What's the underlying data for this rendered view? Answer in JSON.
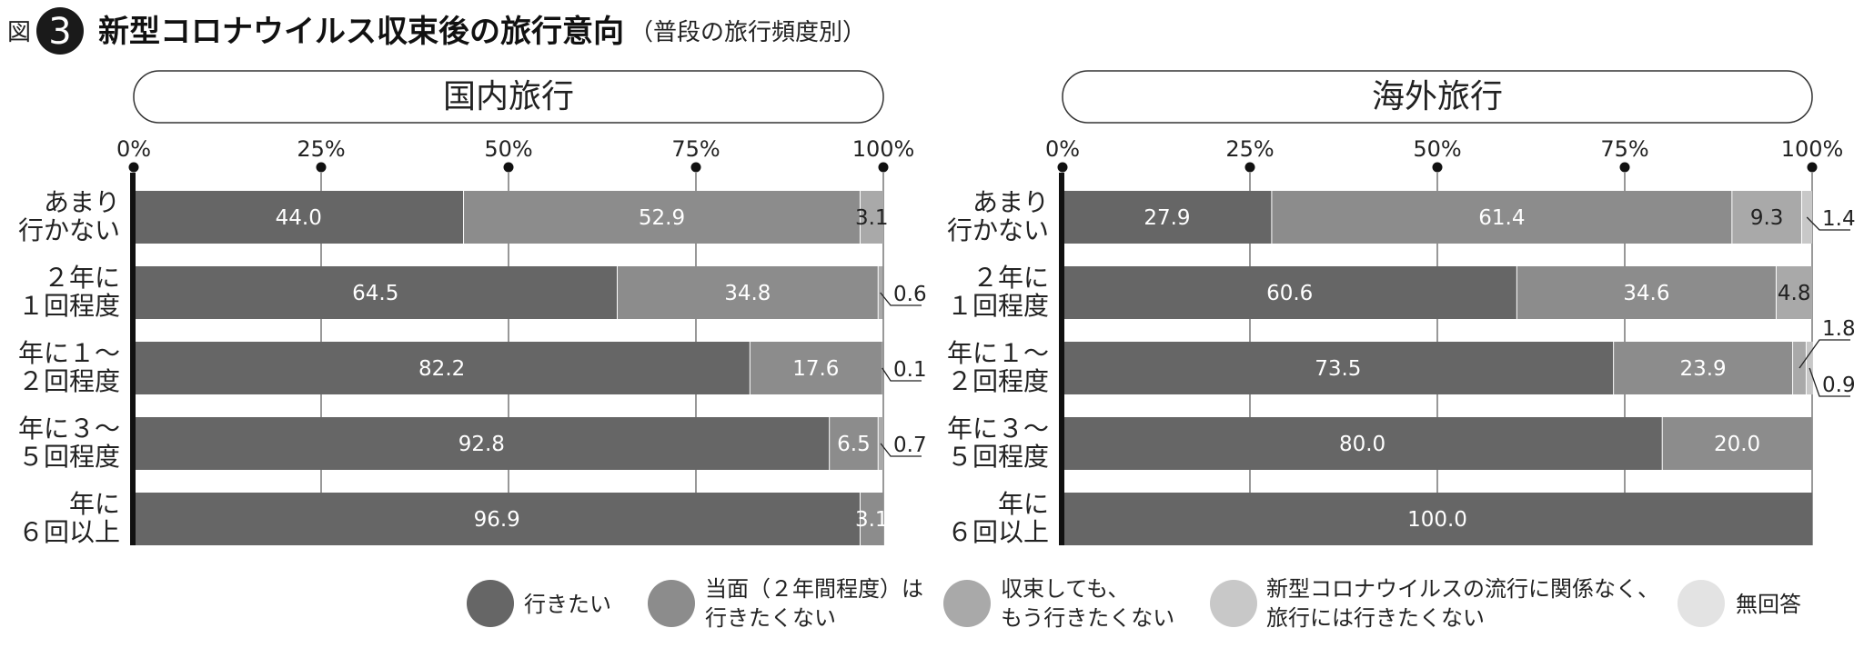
{
  "figure": {
    "label": "図",
    "number": "3",
    "title": "新型コロナウイルス収束後の旅行意向",
    "subtitle": "（普段の旅行頻度別）"
  },
  "colors": [
    "#666666",
    "#8c8c8c",
    "#a9a9a9",
    "#c8c8c8",
    "#e3e3e3"
  ],
  "legend": [
    {
      "lines": [
        "行きたい"
      ]
    },
    {
      "lines": [
        "当面（２年間程度）は",
        "行きたくない"
      ]
    },
    {
      "lines": [
        "収束しても、",
        "もう行きたくない"
      ]
    },
    {
      "lines": [
        "新型コロナウイルスの流行に関係なく、",
        "旅行には行きたくない"
      ]
    },
    {
      "lines": [
        "無回答"
      ]
    }
  ],
  "chart_data": [
    {
      "type": "bar",
      "orientation": "horizontal",
      "stacked": true,
      "title": "国内旅行",
      "xlim": [
        0,
        100
      ],
      "xticks": [
        "0%",
        "25%",
        "50%",
        "75%",
        "100%"
      ],
      "categories": [
        [
          "あまり",
          "行かない"
        ],
        [
          "２年に",
          "１回程度"
        ],
        [
          "年に１～",
          "２回程度"
        ],
        [
          "年に３～",
          "５回程度"
        ],
        [
          "年に",
          "６回以上"
        ]
      ],
      "series": [
        {
          "name": "行きたい",
          "values": [
            44.0,
            64.5,
            82.2,
            92.8,
            96.9
          ]
        },
        {
          "name": "当面（２年間程度）は行きたくない",
          "values": [
            52.9,
            34.8,
            17.6,
            6.5,
            3.1
          ]
        },
        {
          "name": "収束しても、もう行きたくない",
          "values": [
            3.1,
            0.6,
            0.1,
            0.7,
            0
          ]
        },
        {
          "name": "新型コロナウイルスの流行に関係なく、旅行には行きたくない",
          "values": [
            0,
            0,
            0,
            0,
            0
          ]
        },
        {
          "name": "無回答",
          "values": [
            0,
            0,
            0,
            0,
            0
          ]
        }
      ],
      "labels": [
        [
          "44.0",
          "52.9",
          "3.1",
          "",
          ""
        ],
        [
          "64.5",
          "34.8",
          "0.6",
          "",
          ""
        ],
        [
          "82.2",
          "17.6",
          "0.1",
          "",
          ""
        ],
        [
          "92.8",
          "6.5",
          "0.7",
          "",
          ""
        ],
        [
          "96.9",
          "3.1",
          "",
          "",
          ""
        ]
      ]
    },
    {
      "type": "bar",
      "orientation": "horizontal",
      "stacked": true,
      "title": "海外旅行",
      "xlim": [
        0,
        100
      ],
      "xticks": [
        "0%",
        "25%",
        "50%",
        "75%",
        "100%"
      ],
      "categories": [
        [
          "あまり",
          "行かない"
        ],
        [
          "２年に",
          "１回程度"
        ],
        [
          "年に１～",
          "２回程度"
        ],
        [
          "年に３～",
          "５回程度"
        ],
        [
          "年に",
          "６回以上"
        ]
      ],
      "series": [
        {
          "name": "行きたい",
          "values": [
            27.9,
            60.6,
            73.5,
            80.0,
            100.0
          ]
        },
        {
          "name": "当面（２年間程度）は行きたくない",
          "values": [
            61.4,
            34.6,
            23.9,
            20.0,
            0
          ]
        },
        {
          "name": "収束しても、もう行きたくない",
          "values": [
            9.3,
            4.8,
            1.8,
            0,
            0
          ]
        },
        {
          "name": "新型コロナウイルスの流行に関係なく、旅行には行きたくない",
          "values": [
            1.4,
            0,
            0.9,
            0,
            0
          ]
        },
        {
          "name": "無回答",
          "values": [
            0,
            0,
            0,
            0,
            0
          ]
        }
      ],
      "labels": [
        [
          "27.9",
          "61.4",
          "9.3",
          "1.4",
          ""
        ],
        [
          "60.6",
          "34.6",
          "4.8",
          "",
          ""
        ],
        [
          "73.5",
          "23.9",
          "1.8",
          "0.9",
          ""
        ],
        [
          "80.0",
          "20.0",
          "",
          "",
          ""
        ],
        [
          "100.0",
          "",
          "",
          "",
          ""
        ]
      ]
    }
  ]
}
